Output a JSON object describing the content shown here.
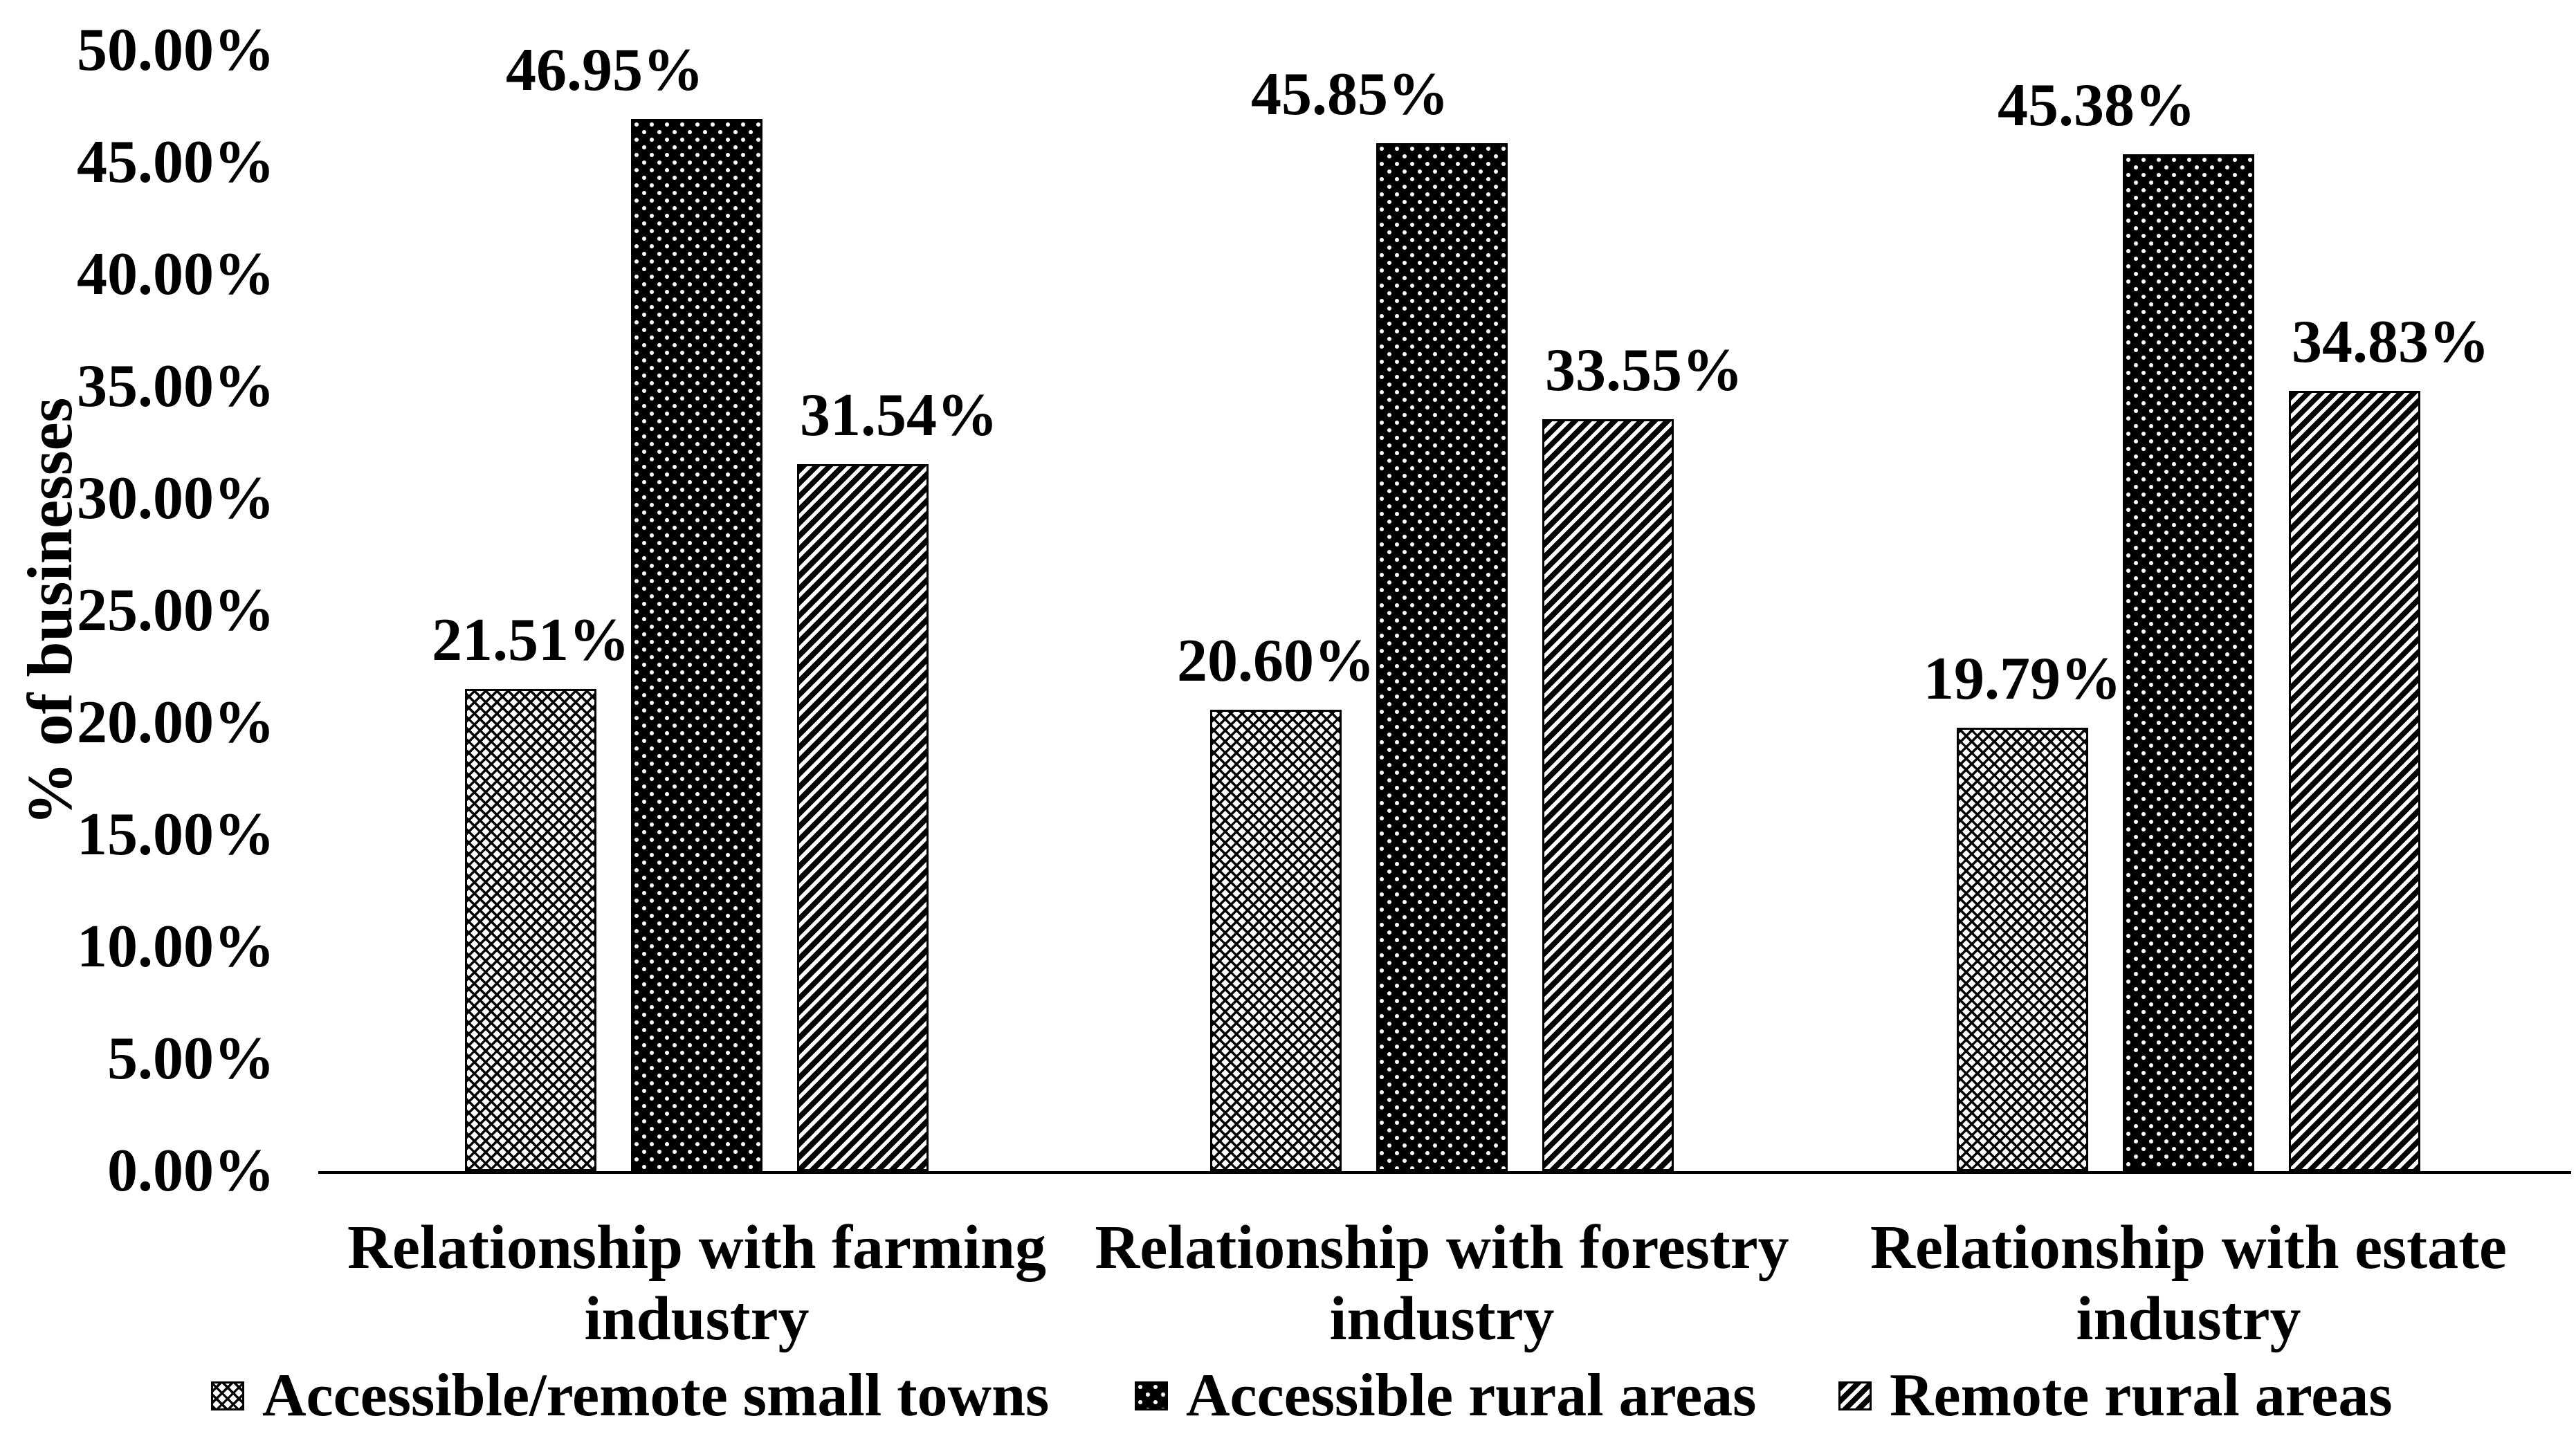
{
  "chart_data": {
    "type": "bar",
    "title": "",
    "ylabel": "% of businesses",
    "xlabel": "",
    "ylim": [
      0,
      50
    ],
    "ytick_step": 5,
    "yticks": [
      "0.00%",
      "5.00%",
      "10.00%",
      "15.00%",
      "20.00%",
      "25.00%",
      "30.00%",
      "35.00%",
      "40.00%",
      "45.00%",
      "50.00%"
    ],
    "categories": [
      "Relationship with farming industry",
      "Relationship with forestry industry",
      "Relationship with estate industry"
    ],
    "series": [
      {
        "name": "Accessible/remote small towns",
        "pattern": "light-crosshatch",
        "values": [
          21.51,
          20.6,
          19.79
        ],
        "value_labels": [
          "21.51%",
          "20.60%",
          "19.79%"
        ]
      },
      {
        "name": "Accessible rural areas",
        "pattern": "black-white-dots",
        "values": [
          46.95,
          45.85,
          45.38
        ],
        "value_labels": [
          "46.95%",
          "45.85%",
          "45.38%"
        ]
      },
      {
        "name": "Remote rural areas",
        "pattern": "diagonal-stripes",
        "values": [
          31.54,
          33.55,
          34.83
        ],
        "value_labels": [
          "31.54%",
          "33.55%",
          "34.83%"
        ]
      }
    ],
    "legend_position": "bottom",
    "grid": false,
    "colors": {
      "foreground": "#000000",
      "background": "#ffffff"
    }
  }
}
